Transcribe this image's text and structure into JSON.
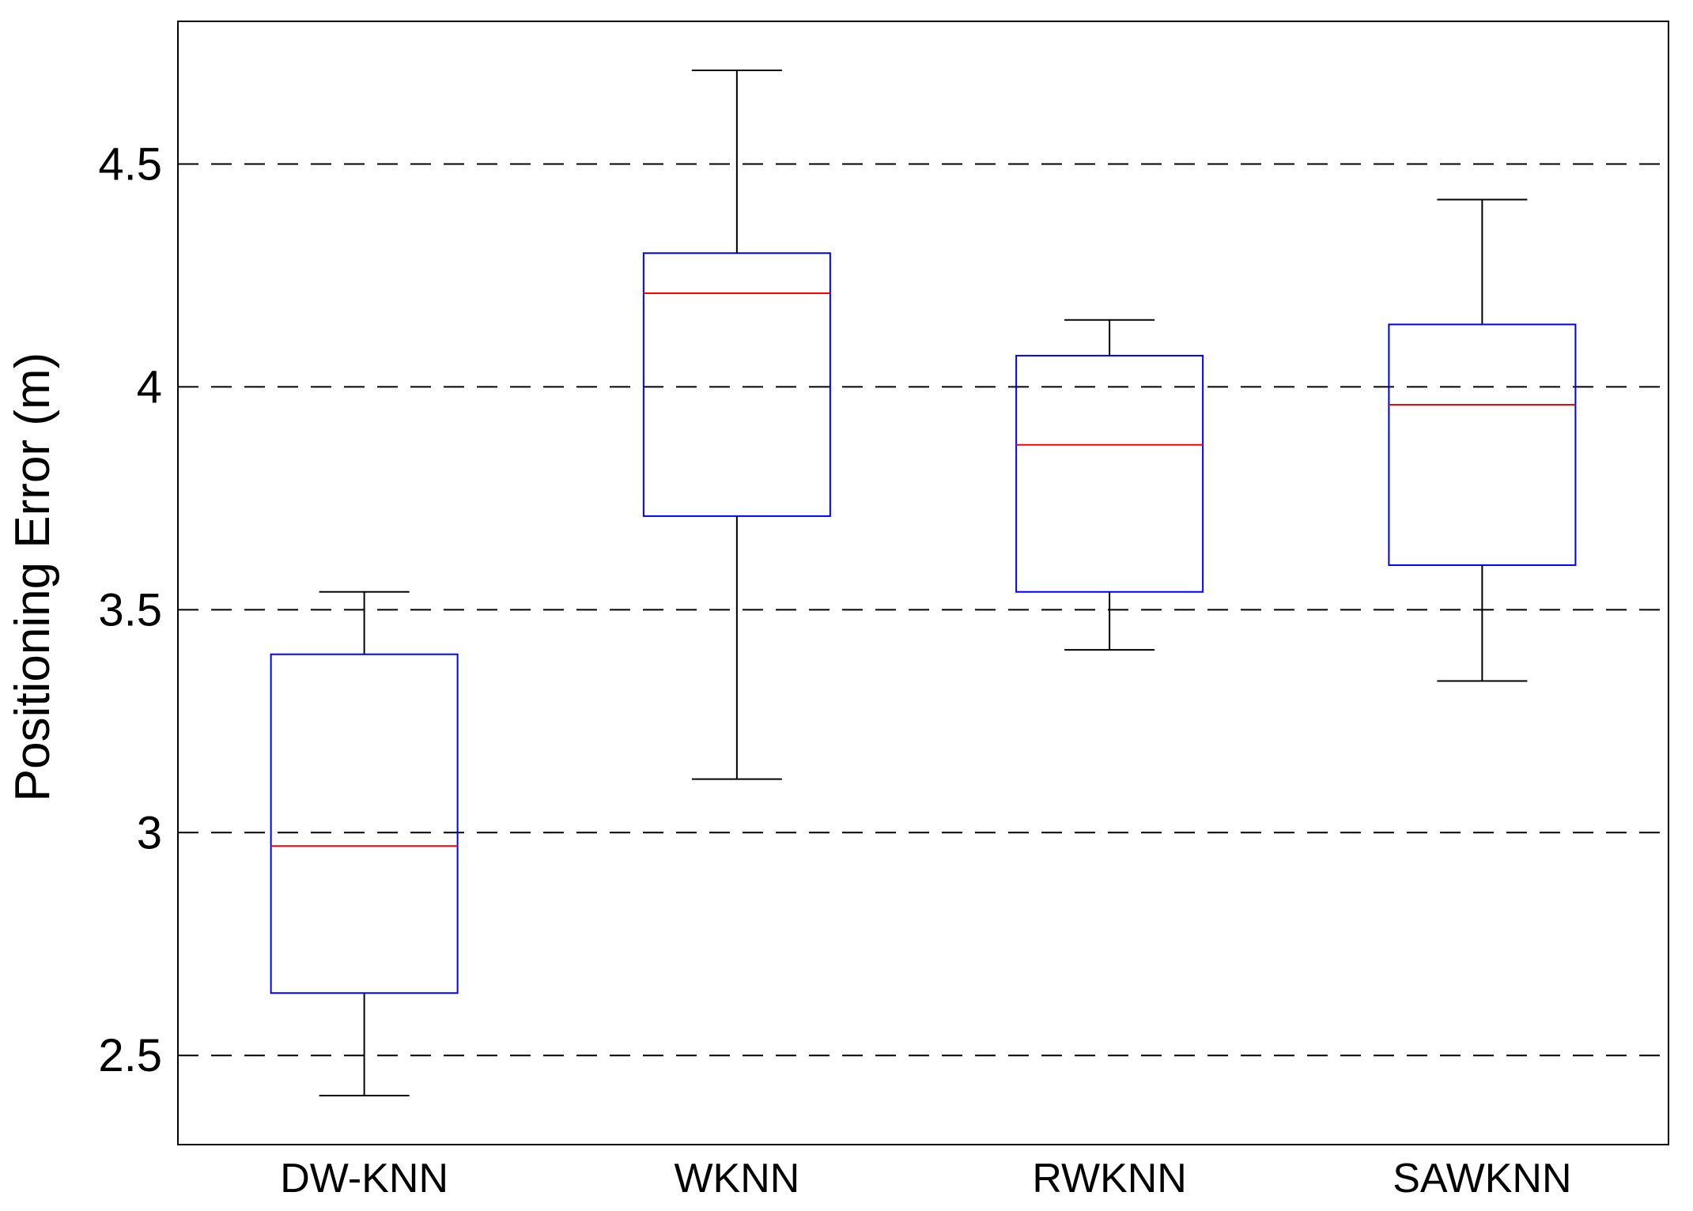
{
  "chart_data": {
    "type": "boxplot",
    "title": "",
    "xlabel": "",
    "ylabel": "Positioning Error (m)",
    "ylim": [
      2.3,
      4.82
    ],
    "yticks": [
      2.5,
      3,
      3.5,
      4,
      4.5
    ],
    "ytick_labels": [
      "2.5",
      "3",
      "3.5",
      "4",
      "4.5"
    ],
    "grid": "horizontal dashed",
    "categories": [
      "DW-KNN",
      "WKNN",
      "RWKNN",
      "SAWKNN"
    ],
    "boxes": [
      {
        "category": "DW-KNN",
        "whisker_low": 2.41,
        "q1": 2.64,
        "median": 2.97,
        "q3": 3.4,
        "whisker_high": 3.54
      },
      {
        "category": "WKNN",
        "whisker_low": 3.12,
        "q1": 3.71,
        "median": 4.21,
        "q3": 4.3,
        "whisker_high": 4.71
      },
      {
        "category": "RWKNN",
        "whisker_low": 3.41,
        "q1": 3.54,
        "median": 3.87,
        "q3": 4.07,
        "whisker_high": 4.15
      },
      {
        "category": "SAWKNN",
        "whisker_low": 3.34,
        "q1": 3.6,
        "median": 3.96,
        "q3": 4.14,
        "whisker_high": 4.42
      }
    ],
    "colors": {
      "box": "#0000ff",
      "median": "#ff0000",
      "whisker": "#000000",
      "grid": "#000000"
    }
  }
}
